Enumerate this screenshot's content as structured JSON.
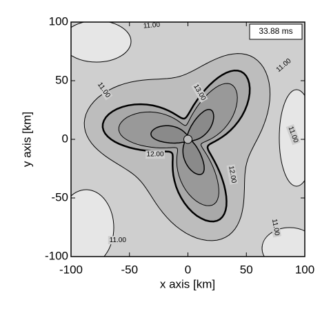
{
  "chart_data": {
    "type": "contour",
    "x_label": "x axis [km]",
    "y_label": "y axis [km]",
    "annotation": "33.88 ms",
    "xlim": [
      -100,
      100
    ],
    "ylim": [
      -100,
      100
    ],
    "xticks": [
      -100,
      -50,
      0,
      50,
      100
    ],
    "yticks": [
      -100,
      -50,
      0,
      50,
      100
    ],
    "contour_labels": [
      {
        "value": 11,
        "label": "11.00",
        "x": -31,
        "y": 97,
        "angle": 5
      },
      {
        "value": 11,
        "label": "11.00",
        "x": 82,
        "y": 63,
        "angle": 40
      },
      {
        "value": 11,
        "label": "11.00",
        "x": -72,
        "y": 42,
        "angle": -55
      },
      {
        "value": 11,
        "label": "11.00",
        "x": 90,
        "y": 4,
        "angle": -70
      },
      {
        "value": 11,
        "label": "11.00",
        "x": -60,
        "y": -86,
        "angle": 0
      },
      {
        "value": 11,
        "label": "11.00",
        "x": 75,
        "y": -75,
        "angle": -80
      },
      {
        "value": 13,
        "label": "13.00",
        "x": 10,
        "y": 40,
        "angle": -60
      },
      {
        "value": 12,
        "label": "12.00",
        "x": -28,
        "y": -13,
        "angle": 0
      },
      {
        "value": 12,
        "label": "12.00",
        "x": 38,
        "y": -30,
        "angle": -80
      }
    ]
  }
}
